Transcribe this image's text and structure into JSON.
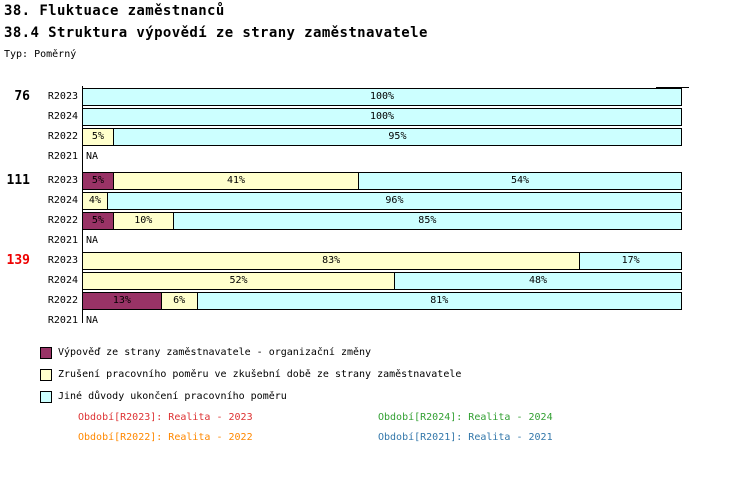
{
  "header": {
    "title": "38. Fluktuace zaměstnanců",
    "subtitle": "38.4 Struktura výpovědí ze strany zaměstnavatele",
    "type_label": "Typ: Poměrný"
  },
  "chart_data": {
    "type": "bar",
    "orientation": "horizontal",
    "stacked": true,
    "unit": "%",
    "x_range": [
      0,
      100
    ],
    "grid": false,
    "na_label": "NA",
    "series": [
      {
        "name": "Výpověď ze strany zaměstnavatele - organizační změny",
        "color": "#993366"
      },
      {
        "name": "Zrušení pracovního poměru ve zkušební době ze strany zaměstnavatele",
        "color": "#FFFFCC"
      },
      {
        "name": "Jiné důvody ukončení pracovního poměru",
        "color": "#CCFFFF"
      }
    ],
    "groups": [
      {
        "label": "76",
        "label_color": "#000000",
        "rows": [
          {
            "period": "R2023",
            "values": [
              0,
              0,
              100
            ]
          },
          {
            "period": "R2024",
            "values": [
              0,
              0,
              100
            ]
          },
          {
            "period": "R2022",
            "values": [
              0,
              5,
              95
            ]
          },
          {
            "period": "R2021",
            "values": null
          }
        ]
      },
      {
        "label": "111",
        "label_color": "#000000",
        "rows": [
          {
            "period": "R2023",
            "values": [
              5,
              41,
              54
            ]
          },
          {
            "period": "R2024",
            "values": [
              0,
              4,
              96
            ]
          },
          {
            "period": "R2022",
            "values": [
              5,
              10,
              85
            ]
          },
          {
            "period": "R2021",
            "values": null
          }
        ]
      },
      {
        "label": "139",
        "label_color": "#EE0000",
        "rows": [
          {
            "period": "R2023",
            "values": [
              0,
              83,
              17
            ]
          },
          {
            "period": "R2024",
            "values": [
              0,
              52,
              48
            ]
          },
          {
            "period": "R2022",
            "values": [
              13,
              6,
              81
            ]
          },
          {
            "period": "R2021",
            "values": null
          }
        ]
      }
    ],
    "legend_position": "bottom-left"
  },
  "footer": {
    "periods": [
      {
        "text": "Období[R2023]: Realita - 2023",
        "color": "#DD3333"
      },
      {
        "text": "Období[R2024]: Realita - 2024",
        "color": "#33A033"
      },
      {
        "text": "Období[R2022]: Realita - 2022",
        "color": "#FF8800"
      },
      {
        "text": "Období[R2021]: Realita - 2021",
        "color": "#3377AA"
      }
    ]
  }
}
